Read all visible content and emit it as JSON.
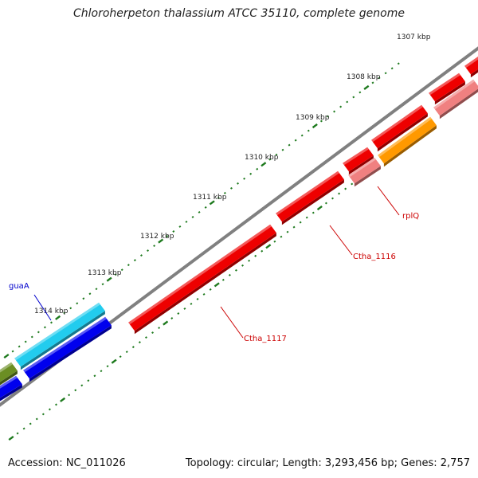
{
  "title": "Chloroherpeton thalassium ATCC 35110, complete genome",
  "ruler": {
    "labels": [
      "1307 kbp",
      "1308 kbp",
      "1309 kbp",
      "1310 kbp",
      "1311 kbp",
      "1312 kbp",
      "1313 kbp",
      "1314 kbp"
    ]
  },
  "gene_labels": [
    {
      "text": "guaA",
      "color": "#0000cc"
    },
    {
      "text": "rplQ",
      "color": "#cc0000"
    },
    {
      "text": "Ctha_1116",
      "color": "#cc0000"
    },
    {
      "text": "Ctha_1117",
      "color": "#cc0000"
    }
  ],
  "colors": {
    "backbone": "#808080",
    "tick": "#1e7a1e",
    "forward_red": "#ee0000",
    "light_red": "#f08080",
    "orange": "#ff9900",
    "cyan": "#22ccee",
    "blue": "#0000ee",
    "olive": "#6b8e23"
  },
  "footer": {
    "accession": "Accession: NC_011026",
    "summary": "Topology: circular; Length: 3,293,456 bp; Genes: 2,757"
  }
}
